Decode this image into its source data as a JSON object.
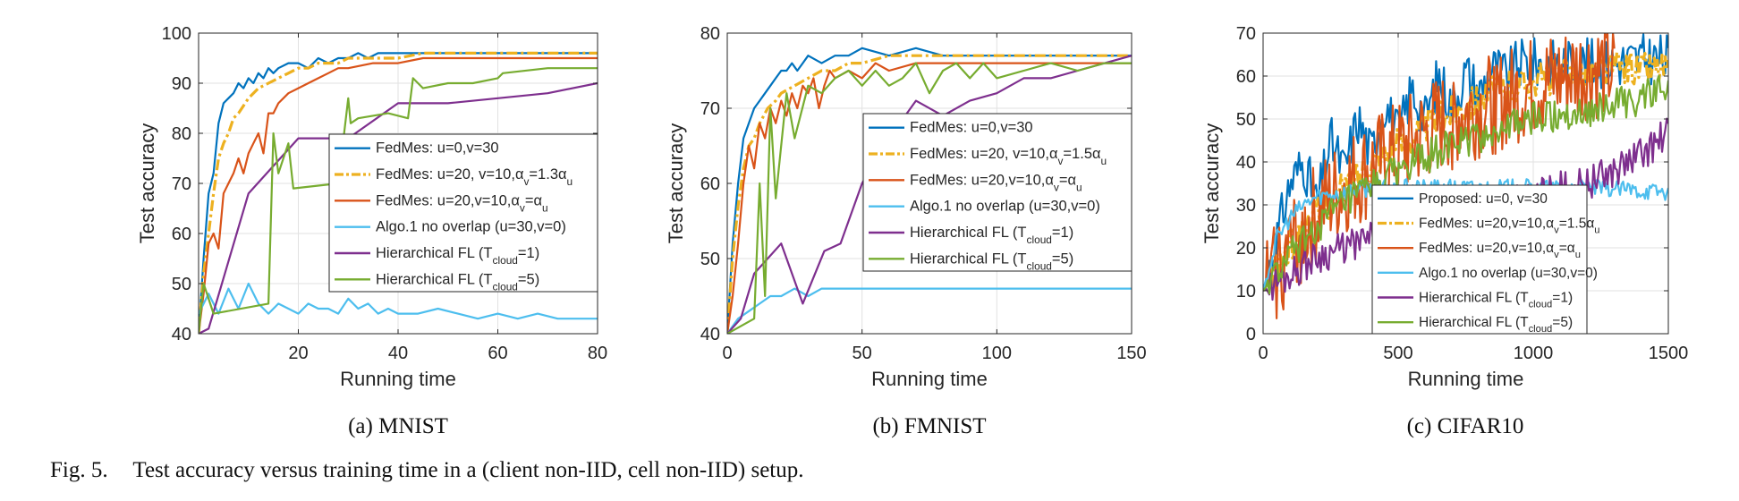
{
  "caption": {
    "label": "Fig. 5.",
    "text": "Test accuracy versus training time in a (client non-IID, cell non-IID) setup."
  },
  "colors": {
    "blue": "#0072BD",
    "orange_dash": "#EDB120",
    "red": "#D95319",
    "cyan": "#4DBEEE",
    "purple": "#7E2F8E",
    "green": "#77AC30"
  },
  "chart_data": [
    {
      "type": "line",
      "subcaption": "(a) MNIST",
      "xlabel": "Running time",
      "ylabel": "Test accuracy",
      "xlim": [
        0,
        80
      ],
      "ylim": [
        40,
        100
      ],
      "xticks": [
        20,
        40,
        60,
        80
      ],
      "yticks": [
        40,
        50,
        60,
        70,
        80,
        90,
        100
      ],
      "grid": true,
      "legend_position": "center-right",
      "series": [
        {
          "name": "FedMes: u=0,v=30",
          "color": "blue",
          "dash": "solid",
          "x": [
            0,
            1,
            2,
            3,
            4,
            5,
            6,
            7,
            8,
            9,
            10,
            11,
            12,
            13,
            14,
            15,
            16,
            18,
            20,
            22,
            24,
            26,
            28,
            30,
            32,
            34,
            36,
            40,
            45,
            50,
            55,
            60,
            65,
            70,
            75,
            80
          ],
          "y": [
            40,
            55,
            68,
            72,
            82,
            86,
            87,
            88,
            90,
            89,
            91,
            90,
            92,
            91,
            93,
            92,
            93,
            94,
            94,
            93,
            95,
            94,
            95,
            95,
            96,
            95,
            96,
            96,
            96,
            96,
            96,
            96,
            96,
            96,
            96,
            96
          ]
        },
        {
          "name": "FedMes: u=20, v=10,α_v=1.3α_u",
          "color": "orange_dash",
          "dash": "dashdot",
          "x": [
            0,
            1,
            2,
            3,
            4,
            5,
            6,
            7,
            8,
            10,
            12,
            14,
            16,
            18,
            20,
            22,
            24,
            26,
            28,
            30,
            35,
            40,
            45,
            50,
            60,
            70,
            80
          ],
          "y": [
            40,
            52,
            60,
            68,
            75,
            78,
            80,
            83,
            84,
            87,
            89,
            90,
            91,
            92,
            93,
            93,
            94,
            94,
            94,
            95,
            95,
            95,
            96,
            96,
            96,
            96,
            96
          ]
        },
        {
          "name": "FedMes: u=20,v=10,α_v=α_u",
          "color": "red",
          "dash": "solid",
          "x": [
            0,
            1,
            2,
            3,
            4,
            5,
            6,
            7,
            8,
            9,
            10,
            11,
            12,
            13,
            14,
            15,
            16,
            18,
            20,
            22,
            24,
            26,
            28,
            30,
            35,
            40,
            45,
            50,
            60,
            70,
            80
          ],
          "y": [
            40,
            48,
            58,
            60,
            57,
            68,
            70,
            72,
            75,
            72,
            76,
            78,
            80,
            76,
            84,
            84,
            86,
            88,
            89,
            90,
            91,
            92,
            93,
            93,
            94,
            94,
            95,
            95,
            95,
            95,
            95
          ]
        },
        {
          "name": "Algo.1 no overlap (u=30,v=0)",
          "color": "cyan",
          "dash": "solid",
          "x": [
            0,
            2,
            4,
            6,
            8,
            10,
            12,
            14,
            16,
            18,
            20,
            22,
            24,
            26,
            28,
            30,
            32,
            34,
            36,
            38,
            40,
            44,
            48,
            52,
            56,
            60,
            64,
            68,
            72,
            76,
            80
          ],
          "y": [
            44,
            48,
            44,
            49,
            45,
            50,
            46,
            44,
            46,
            45,
            44,
            46,
            45,
            45,
            44,
            47,
            45,
            46,
            44,
            45,
            44,
            44,
            45,
            44,
            43,
            44,
            43,
            44,
            43,
            43,
            43
          ]
        },
        {
          "name": "Hierarchical FL (T_cloud=1)",
          "color": "purple",
          "dash": "solid",
          "x": [
            0,
            2,
            10,
            20,
            30,
            40,
            50,
            60,
            70,
            80
          ],
          "y": [
            40,
            41,
            68,
            79,
            79,
            86,
            86,
            87,
            88,
            90
          ]
        },
        {
          "name": "Hierarchical FL (T_cloud=5)",
          "color": "green",
          "dash": "solid",
          "x": [
            0,
            1,
            3,
            14,
            15,
            16,
            18,
            19,
            28,
            30,
            30.5,
            32,
            38,
            42,
            43,
            45,
            50,
            55,
            60,
            61,
            70,
            80
          ],
          "y": [
            40,
            50,
            44,
            46,
            80,
            72,
            78,
            69,
            70,
            87,
            82,
            83,
            84,
            83,
            91,
            89,
            90,
            90,
            91,
            92,
            93,
            93
          ]
        }
      ]
    },
    {
      "type": "line",
      "subcaption": "(b) FMNIST",
      "xlabel": "Running time",
      "ylabel": "Test accuracy",
      "xlim": [
        0,
        150
      ],
      "ylim": [
        40,
        80
      ],
      "xticks": [
        0,
        50,
        100,
        150
      ],
      "yticks": [
        40,
        50,
        60,
        70,
        80
      ],
      "grid": true,
      "legend_position": "center-right",
      "series": [
        {
          "name": "FedMes: u=0,v=30",
          "color": "blue",
          "dash": "solid",
          "x": [
            0,
            2,
            4,
            6,
            8,
            10,
            12,
            14,
            16,
            18,
            20,
            22,
            24,
            26,
            28,
            30,
            35,
            40,
            45,
            50,
            60,
            70,
            80,
            90,
            100,
            110,
            120,
            130,
            140,
            150
          ],
          "y": [
            40,
            52,
            60,
            66,
            68,
            70,
            71,
            72,
            73,
            74,
            75,
            75,
            76,
            75,
            76,
            77,
            76,
            77,
            77,
            78,
            77,
            78,
            77,
            77,
            77,
            77,
            77,
            77,
            77,
            77
          ]
        },
        {
          "name": "FedMes: u=20, v=10,α_v=1.5α_u",
          "color": "orange_dash",
          "dash": "dashdot",
          "x": [
            0,
            2,
            4,
            6,
            8,
            10,
            12,
            15,
            18,
            20,
            25,
            30,
            35,
            40,
            45,
            50,
            60,
            70,
            80,
            90,
            100,
            110,
            120,
            130,
            140,
            150
          ],
          "y": [
            40,
            50,
            57,
            62,
            65,
            66,
            68,
            70,
            71,
            72,
            73,
            74,
            75,
            75,
            76,
            76,
            77,
            77,
            77,
            77,
            77,
            77,
            77,
            77,
            77,
            77
          ]
        },
        {
          "name": "FedMes: u=20,v=10,α_v=α_u",
          "color": "red",
          "dash": "solid",
          "x": [
            0,
            2,
            4,
            6,
            8,
            10,
            12,
            14,
            16,
            18,
            20,
            22,
            24,
            26,
            28,
            30,
            32,
            34,
            36,
            38,
            40,
            45,
            50,
            55,
            60,
            70,
            80,
            90,
            100,
            110,
            120,
            130,
            140,
            150
          ],
          "y": [
            40,
            45,
            52,
            60,
            65,
            62,
            68,
            66,
            70,
            68,
            71,
            69,
            72,
            70,
            73,
            72,
            74,
            70,
            73,
            75,
            74,
            75,
            74,
            76,
            75,
            76,
            76,
            76,
            76,
            76,
            76,
            76,
            76,
            76
          ]
        },
        {
          "name": "Algo.1 no overlap (u=30,v=0)",
          "color": "cyan",
          "dash": "solid",
          "x": [
            0,
            4,
            8,
            12,
            16,
            20,
            25,
            30,
            35,
            40,
            50,
            60,
            70,
            80,
            100,
            120,
            150
          ],
          "y": [
            40,
            42,
            43,
            44,
            45,
            45,
            46,
            45,
            46,
            46,
            46,
            46,
            46,
            46,
            46,
            46,
            46
          ]
        },
        {
          "name": "Hierarchical FL (T_cloud=1)",
          "color": "purple",
          "dash": "solid",
          "x": [
            0,
            5,
            10,
            15,
            20,
            28,
            36,
            42,
            50,
            60,
            70,
            80,
            90,
            100,
            110,
            120,
            130,
            140,
            150
          ],
          "y": [
            40,
            42,
            48,
            50,
            52,
            44,
            51,
            52,
            60,
            66,
            71,
            69,
            71,
            72,
            74,
            74,
            75,
            76,
            77
          ]
        },
        {
          "name": "Hierarchical FL (T_cloud=5)",
          "color": "green",
          "dash": "solid",
          "x": [
            0,
            10,
            12,
            14,
            16,
            18,
            22,
            25,
            30,
            35,
            40,
            45,
            50,
            55,
            60,
            65,
            70,
            75,
            80,
            85,
            90,
            95,
            100,
            110,
            120,
            130,
            140,
            150
          ],
          "y": [
            40,
            42,
            60,
            45,
            70,
            58,
            72,
            66,
            73,
            72,
            74,
            75,
            73,
            75,
            73,
            74,
            76,
            72,
            75,
            76,
            74,
            76,
            74,
            75,
            76,
            75,
            76,
            76
          ]
        }
      ]
    },
    {
      "type": "line",
      "subcaption": "(c) CIFAR10",
      "xlabel": "Running time",
      "ylabel": "Test accuracy",
      "xlim": [
        0,
        1500
      ],
      "ylim": [
        0,
        70
      ],
      "xticks": [
        0,
        500,
        1000,
        1500
      ],
      "yticks": [
        0,
        10,
        20,
        30,
        40,
        50,
        60,
        70
      ],
      "grid": true,
      "legend_position": "bottom-right",
      "series": [
        {
          "name": "Proposed: u=0, v=30",
          "color": "blue",
          "dash": "solid",
          "x": [
            0,
            50,
            100,
            150,
            200,
            250,
            300,
            350,
            400,
            450,
            500,
            550,
            600,
            650,
            700,
            750,
            800,
            850,
            900,
            950,
            1000,
            1100,
            1200,
            1300,
            1400,
            1500
          ],
          "y": [
            10,
            22,
            35,
            40,
            30,
            45,
            38,
            50,
            42,
            54,
            46,
            57,
            50,
            60,
            53,
            61,
            56,
            62,
            60,
            63,
            63,
            63,
            63,
            63,
            64,
            64
          ],
          "amplitude": 6
        },
        {
          "name": "FedMes: u=20,v=10,α_v=1.5α_u",
          "color": "orange_dash",
          "dash": "dashdot",
          "x": [
            0,
            100,
            200,
            300,
            400,
            500,
            600,
            700,
            800,
            900,
            1000,
            1100,
            1200,
            1300,
            1400,
            1500
          ],
          "y": [
            10,
            20,
            28,
            34,
            40,
            44,
            48,
            52,
            55,
            57,
            59,
            60,
            61,
            62,
            62,
            62
          ],
          "amplitude": 4
        },
        {
          "name": "FedMes: u=20,v=10,α_v=α_u",
          "color": "red",
          "dash": "solid",
          "x": [
            0,
            100,
            200,
            300,
            400,
            500,
            600,
            700,
            800,
            900,
            1000,
            1100,
            1200,
            1300
          ],
          "y": [
            10,
            20,
            28,
            34,
            38,
            42,
            46,
            50,
            52,
            54,
            57,
            59,
            61,
            61
          ],
          "amplitude": 12
        },
        {
          "name": "Algo.1 no overlap (u=30,v=0)",
          "color": "cyan",
          "dash": "solid",
          "x": [
            0,
            50,
            100,
            150,
            200,
            300,
            400,
            600,
            800,
            1000,
            1200,
            1500
          ],
          "y": [
            10,
            22,
            27,
            30,
            32,
            33,
            34,
            34,
            34,
            34,
            34,
            33
          ],
          "amplitude": 2
        },
        {
          "name": "Hierarchical FL (T_cloud=1)",
          "color": "purple",
          "dash": "solid",
          "x": [
            0,
            100,
            200,
            300,
            400,
            500,
            600,
            700,
            800,
            900,
            1000,
            1100,
            1200,
            1300,
            1400,
            1450,
            1480,
            1500
          ],
          "y": [
            10,
            14,
            18,
            20,
            22,
            24,
            25,
            27,
            28,
            30,
            32,
            34,
            35,
            38,
            42,
            44,
            46,
            47
          ],
          "amplitude": 4
        },
        {
          "name": "Hierarchical FL (T_cloud=5)",
          "color": "green",
          "dash": "solid",
          "x": [
            0,
            100,
            200,
            300,
            400,
            500,
            600,
            700,
            800,
            900,
            1000,
            1100,
            1200,
            1300,
            1400,
            1500
          ],
          "y": [
            10,
            18,
            25,
            30,
            34,
            38,
            41,
            44,
            46,
            48,
            50,
            51,
            52,
            53,
            55,
            57
          ],
          "amplitude": 4
        }
      ]
    }
  ]
}
